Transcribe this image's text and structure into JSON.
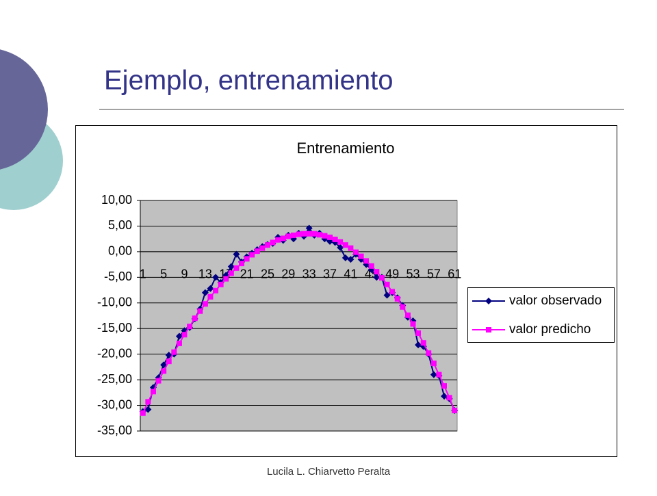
{
  "slide": {
    "title": "Ejemplo, entrenamiento",
    "footer": "Lucila L. Chiarvetto Peralta"
  },
  "chart_data": {
    "type": "line",
    "title": "Entrenamiento",
    "categories": [
      "1",
      null,
      null,
      null,
      "5",
      null,
      null,
      null,
      "9",
      null,
      null,
      null,
      "13",
      null,
      null,
      null,
      "17",
      null,
      null,
      null,
      "21",
      null,
      null,
      null,
      "25",
      null,
      null,
      null,
      "29",
      null,
      null,
      null,
      "33",
      null,
      null,
      null,
      "37",
      null,
      null,
      null,
      "41",
      null,
      null,
      null,
      "45",
      null,
      null,
      null,
      "49",
      null,
      null,
      null,
      "53",
      null,
      null,
      null,
      "57",
      null,
      null,
      null,
      "61"
    ],
    "series": [
      {
        "name": "valor observado",
        "color": "#000080",
        "marker": "diamond",
        "values": [
          -31.2,
          -30.8,
          -26.5,
          -24.6,
          -22.1,
          -20.2,
          -20.0,
          -16.5,
          -15.4,
          -14.8,
          -13.1,
          -11.2,
          -8.0,
          -7.2,
          -5.0,
          -6.0,
          -4.6,
          -2.9,
          -0.5,
          -2.0,
          -1.0,
          -0.3,
          0.4,
          1.0,
          1.4,
          1.6,
          2.8,
          2.2,
          3.2,
          2.5,
          3.6,
          3.0,
          4.6,
          3.2,
          3.6,
          2.5,
          2.0,
          1.8,
          0.8,
          -1.2,
          -1.5,
          -0.5,
          -1.5,
          -2.5,
          -3.5,
          -5.0,
          -5.0,
          -8.5,
          -8.0,
          -9.0,
          -10.5,
          -12.8,
          -13.5,
          -18.2,
          -18.5,
          -20.0,
          -24.0,
          -24.2,
          -28.2,
          -28.7,
          -31.0
        ]
      },
      {
        "name": "valor predicho",
        "color": "#ff00ff",
        "marker": "square",
        "values": [
          -31.5,
          -29.3,
          -27.3,
          -25.2,
          -23.3,
          -21.4,
          -19.6,
          -17.9,
          -16.2,
          -14.6,
          -13.0,
          -11.6,
          -10.2,
          -8.8,
          -7.6,
          -6.4,
          -5.3,
          -4.2,
          -3.2,
          -2.3,
          -1.4,
          -0.6,
          0.1,
          0.7,
          1.3,
          1.8,
          2.3,
          2.6,
          3.0,
          3.2,
          3.4,
          3.5,
          3.5,
          3.5,
          3.3,
          3.1,
          2.8,
          2.4,
          1.9,
          1.3,
          0.7,
          -0.1,
          -0.9,
          -1.8,
          -2.8,
          -3.9,
          -5.1,
          -6.4,
          -7.8,
          -9.2,
          -10.8,
          -12.4,
          -14.1,
          -15.9,
          -17.8,
          -19.8,
          -21.8,
          -24.0,
          -26.2,
          -28.5,
          -31.0
        ]
      }
    ],
    "ylim": [
      -35,
      10
    ],
    "yticks": [
      {
        "value": -35,
        "label": "-35,00"
      },
      {
        "value": -30,
        "label": "-30,00"
      },
      {
        "value": -25,
        "label": "-25,00"
      },
      {
        "value": -20,
        "label": "-20,00"
      },
      {
        "value": -15,
        "label": "-15,00"
      },
      {
        "value": -10,
        "label": "-10,00"
      },
      {
        "value": -5,
        "label": "-5,00"
      },
      {
        "value": 0,
        "label": "0,00"
      },
      {
        "value": 5,
        "label": "5,00"
      },
      {
        "value": 10,
        "label": "10,00"
      }
    ],
    "grid": true,
    "legend": "right",
    "plot_background": "#c0c0c0"
  }
}
